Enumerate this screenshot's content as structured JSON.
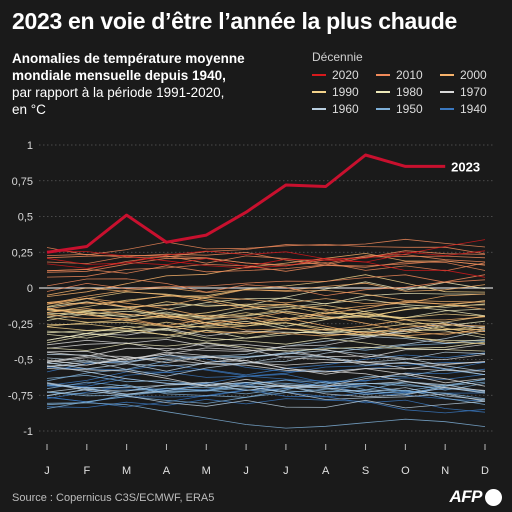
{
  "title": "2023 en voie d’être l’année la plus chaude",
  "subtitle_line1": "Anomalies de température moyenne",
  "subtitle_line2": "mondiale mensuelle depuis 1940,",
  "subtitle_line3": "par rapport à la période 1991-2020,",
  "subtitle_line4": "en °C",
  "legend": {
    "title": "Décennie",
    "items": [
      {
        "label": "2020",
        "color": "#d7191c"
      },
      {
        "label": "2010",
        "color": "#f08a5a"
      },
      {
        "label": "2000",
        "color": "#f6b26b"
      },
      {
        "label": "1990",
        "color": "#f3d28a"
      },
      {
        "label": "1980",
        "color": "#ece8b8"
      },
      {
        "label": "1970",
        "color": "#d9d9d9"
      },
      {
        "label": "1960",
        "color": "#b9cfe0"
      },
      {
        "label": "1950",
        "color": "#7fb0d8"
      },
      {
        "label": "1940",
        "color": "#3a78c0"
      }
    ]
  },
  "source": "Source : Copernicus C3S/ECMWF, ERA5",
  "logo": "AFP",
  "chart_data": {
    "type": "line",
    "x": [
      "J",
      "F",
      "M",
      "A",
      "M",
      "J",
      "J",
      "A",
      "S",
      "O",
      "N",
      "D"
    ],
    "ylim": [
      -1,
      1
    ],
    "y_ticks": [
      {
        "value": 1,
        "label": "1"
      },
      {
        "value": 0.75,
        "label": "0,75"
      },
      {
        "value": 0.5,
        "label": "0,5"
      },
      {
        "value": 0.25,
        "label": "0,25"
      },
      {
        "value": 0,
        "label": "0"
      },
      {
        "value": -0.25,
        "label": "-0,25"
      },
      {
        "value": -0.5,
        "label": "-0,5"
      },
      {
        "value": -0.75,
        "label": "-0,75"
      },
      {
        "value": -1,
        "label": "-1"
      }
    ],
    "highlight": {
      "label": "2023",
      "color": "#c8102e",
      "values": [
        0.25,
        0.29,
        0.51,
        0.32,
        0.37,
        0.53,
        0.72,
        0.71,
        0.93,
        0.85,
        0.85
      ]
    },
    "decades": [
      {
        "decade": "2020",
        "color": "#d7191c",
        "count": 3,
        "base": 0.28,
        "spread": 0.08
      },
      {
        "decade": "2010",
        "color": "#f08a5a",
        "count": 10,
        "base": 0.14,
        "spread": 0.14
      },
      {
        "decade": "2000",
        "color": "#f6b26b",
        "count": 10,
        "base": -0.06,
        "spread": 0.12
      },
      {
        "decade": "1990",
        "color": "#f3d28a",
        "count": 10,
        "base": -0.2,
        "spread": 0.12
      },
      {
        "decade": "1980",
        "color": "#ece8b8",
        "count": 10,
        "base": -0.3,
        "spread": 0.12
      },
      {
        "decade": "1970",
        "color": "#d9d9d9",
        "count": 10,
        "base": -0.5,
        "spread": 0.13
      },
      {
        "decade": "1960",
        "color": "#b9cfe0",
        "count": 10,
        "base": -0.58,
        "spread": 0.13
      },
      {
        "decade": "1950",
        "color": "#7fb0d8",
        "count": 10,
        "base": -0.72,
        "spread": 0.12
      },
      {
        "decade": "1940",
        "color": "#3a78c0",
        "count": 10,
        "base": -0.7,
        "spread": 0.12
      }
    ]
  }
}
